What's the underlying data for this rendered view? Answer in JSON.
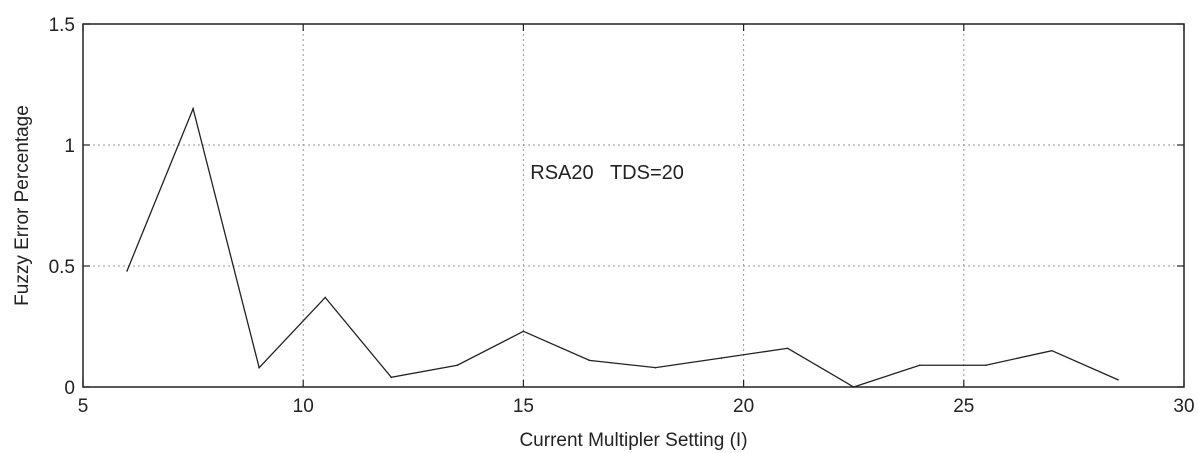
{
  "chart_data": {
    "type": "line",
    "title": "",
    "xlabel": "Current Multipler Setting (I)",
    "ylabel": "Fuzzy Error Percentage",
    "xlim": [
      5,
      30
    ],
    "ylim": [
      0,
      1.5
    ],
    "xticks": [
      5,
      10,
      15,
      20,
      25,
      30
    ],
    "xtick_labels": [
      "5",
      "10",
      "15",
      "20",
      "25",
      "30"
    ],
    "yticks": [
      0,
      0.5,
      1,
      1.5
    ],
    "ytick_labels": [
      "0",
      "0.5",
      "1",
      "1.5"
    ],
    "grid": true,
    "annotation": {
      "text": "RSA20   TDS=20",
      "x": 16.9,
      "y": 0.86
    },
    "series": [
      {
        "name": "",
        "color": "#222222",
        "x": [
          6,
          7.5,
          9,
          10.5,
          12,
          13.5,
          15,
          16.5,
          18,
          19.5,
          21,
          22.5,
          24,
          25.5,
          27,
          28.5
        ],
        "y": [
          0.48,
          1.15,
          0.08,
          0.37,
          0.04,
          0.09,
          0.23,
          0.11,
          0.08,
          0.12,
          0.16,
          0.0,
          0.09,
          0.09,
          0.15,
          0.03
        ]
      }
    ]
  }
}
